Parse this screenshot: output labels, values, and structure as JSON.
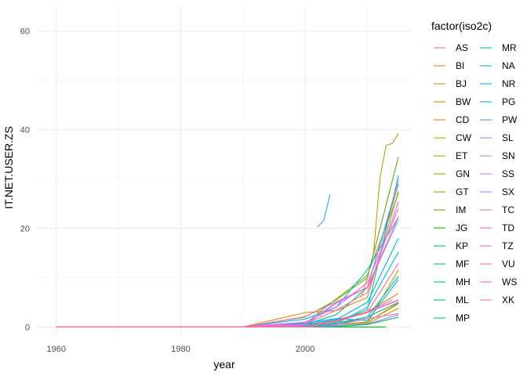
{
  "chart_data": {
    "type": "line",
    "xlabel": "year",
    "ylabel": "IT.NET.USER.ZS",
    "xlim": [
      1957,
      2017
    ],
    "ylim": [
      -2,
      65
    ],
    "x_ticks": [
      1960,
      1980,
      2000
    ],
    "y_ticks": [
      0,
      20,
      40,
      60
    ],
    "grid": true,
    "legend": {
      "title": "factor(iso2c)",
      "placement": "right"
    },
    "series": [
      {
        "name": "AS",
        "color": "#F8766D",
        "x": [
          1960,
          1990,
          2000,
          2005,
          2010,
          2014
        ],
        "y": [
          0,
          0,
          0.5,
          1.5,
          3.0,
          5.5
        ]
      },
      {
        "name": "BI",
        "color": "#F07F4F",
        "x": [
          1960,
          1990,
          2000,
          2005,
          2010,
          2015
        ],
        "y": [
          0,
          0,
          0.1,
          0.5,
          1.0,
          4.9
        ]
      },
      {
        "name": "BJ",
        "color": "#E7861B",
        "x": [
          1960,
          1990,
          2000,
          2005,
          2010,
          2015
        ],
        "y": [
          0,
          0,
          0.3,
          1.3,
          3.1,
          6.8
        ]
      },
      {
        "name": "BW",
        "color": "#DB8E00",
        "x": [
          1960,
          1990,
          2000,
          2005,
          2010,
          2015
        ],
        "y": [
          0,
          0,
          2.9,
          3.3,
          6.0,
          27.5
        ]
      },
      {
        "name": "CD",
        "color": "#CD9600",
        "x": [
          1960,
          1990,
          2000,
          2005,
          2010,
          2015
        ],
        "y": [
          0,
          0,
          0.0,
          0.2,
          0.7,
          3.8
        ]
      },
      {
        "name": "CW",
        "color": "#C49A00",
        "x": [
          2009,
          2010,
          2011,
          2012,
          2013,
          2014,
          2015
        ],
        "y": [
          6.0,
          10.0,
          15.0,
          30.0,
          36.8,
          37.2,
          39.2
        ]
      },
      {
        "name": "ET",
        "color": "#AEA200",
        "x": [
          1960,
          1990,
          2000,
          2005,
          2010,
          2015
        ],
        "y": [
          0,
          0,
          0.0,
          0.2,
          0.8,
          11.6
        ]
      },
      {
        "name": "GN",
        "color": "#96A900",
        "x": [
          1960,
          1990,
          2000,
          2005,
          2010,
          2015
        ],
        "y": [
          0,
          0,
          0.1,
          0.5,
          1.0,
          4.7
        ]
      },
      {
        "name": "GT",
        "color": "#7CAE00",
        "x": [
          1960,
          1990,
          2000,
          2005,
          2010,
          2015
        ],
        "y": [
          0,
          0,
          0.7,
          5.7,
          10.5,
          27.1
        ]
      },
      {
        "name": "IM",
        "color": "#5BB300",
        "x": [
          1960,
          1990,
          2000,
          2005,
          2010,
          2015
        ],
        "y": [
          0,
          0,
          2.0,
          5.5,
          10.0,
          34.5
        ]
      },
      {
        "name": "JG",
        "color": "#00B81F",
        "x": [
          1990,
          2000,
          2005,
          2010,
          2013
        ],
        "y": [
          0,
          0.0,
          0.0,
          0.0,
          0.0
        ]
      },
      {
        "name": "KP",
        "color": "#00BC59",
        "x": [
          1960,
          1990,
          2000,
          2005,
          2010,
          2015
        ],
        "y": [
          0,
          0,
          0.0,
          0.1,
          0.5,
          2.0
        ]
      },
      {
        "name": "MF",
        "color": "#00BE6C",
        "x": [
          1960,
          1990,
          2000,
          2005,
          2010,
          2015
        ],
        "y": [
          0,
          0,
          0.1,
          0.8,
          2.0,
          5.0
        ]
      },
      {
        "name": "MH",
        "color": "#00C08B",
        "x": [
          1960,
          1990,
          2000,
          2005,
          2010,
          2015
        ],
        "y": [
          0,
          0,
          0.5,
          2.5,
          8.0,
          29.0
        ]
      },
      {
        "name": "ML",
        "color": "#00C0A7",
        "x": [
          1960,
          1990,
          2000,
          2005,
          2010,
          2015
        ],
        "y": [
          0,
          0,
          0.1,
          0.5,
          2.0,
          10.3
        ]
      },
      {
        "name": "MP",
        "color": "#00BFC4",
        "x": [
          1960,
          1990,
          2000,
          2005,
          2010,
          2015
        ],
        "y": [
          0,
          0,
          0.3,
          1.0,
          3.5,
          30.7
        ]
      },
      {
        "name": "MR",
        "color": "#00BCD8",
        "x": [
          1960,
          1990,
          2000,
          2005,
          2010,
          2015
        ],
        "y": [
          0,
          0,
          0.2,
          0.7,
          4.0,
          15.2
        ]
      },
      {
        "name": "NA",
        "color": "#00B6EB",
        "x": [
          1960,
          1990,
          2000,
          2005,
          2010,
          2015
        ],
        "y": [
          0,
          0,
          1.6,
          4.0,
          11.6,
          22.3
        ]
      },
      {
        "name": "NR",
        "color": "#00B0F6",
        "x": [
          1960,
          1990,
          2000,
          2005,
          2010,
          2015
        ],
        "y": [
          0,
          0,
          0.5,
          1.5,
          5.0,
          18.0
        ]
      },
      {
        "name": "PG",
        "color": "#00A9FF",
        "x": [
          1960,
          1990,
          2000,
          2005,
          2010,
          2015
        ],
        "y": [
          0,
          0,
          0.8,
          1.7,
          1.3,
          9.6
        ]
      },
      {
        "name": "PW",
        "color": "#35A2FF",
        "x": [
          2002,
          2003,
          2004
        ],
        "y": [
          20.3,
          21.6,
          26.9
        ]
      },
      {
        "name": "SL",
        "color": "#7997FF",
        "x": [
          1960,
          1990,
          2000,
          2005,
          2010,
          2015
        ],
        "y": [
          0,
          0,
          0.1,
          0.2,
          0.6,
          2.5
        ]
      },
      {
        "name": "SN",
        "color": "#9590FF",
        "x": [
          1960,
          1990,
          2000,
          2005,
          2010,
          2015
        ],
        "y": [
          0,
          0,
          0.4,
          4.8,
          8.0,
          21.7
        ]
      },
      {
        "name": "SS",
        "color": "#C77CFF",
        "x": [
          2011,
          2012,
          2013,
          2014,
          2015
        ],
        "y": [
          3.8,
          4.0,
          4.5,
          5.0,
          5.5
        ]
      },
      {
        "name": "SX",
        "color": "#DC71FA",
        "x": [
          1960,
          1990,
          2000,
          2005,
          2010,
          2015
        ],
        "y": [
          0,
          0,
          0.5,
          5.0,
          8.0,
          29.8
        ]
      },
      {
        "name": "TC",
        "color": "#E76BF3",
        "x": [
          1960,
          1990,
          2000,
          2005,
          2010,
          2015
        ],
        "y": [
          0,
          0,
          1.0,
          4.0,
          9.0,
          24.0
        ]
      },
      {
        "name": "TD",
        "color": "#F365E6",
        "x": [
          1960,
          1990,
          2000,
          2005,
          2010,
          2015
        ],
        "y": [
          0,
          0,
          0.0,
          0.4,
          1.7,
          2.7
        ]
      },
      {
        "name": "TZ",
        "color": "#FC61D5",
        "x": [
          1960,
          1990,
          2000,
          2005,
          2010,
          2015
        ],
        "y": [
          0,
          0,
          0.1,
          1.1,
          2.9,
          5.4
        ]
      },
      {
        "name": "VU",
        "color": "#FF62BC",
        "x": [
          1960,
          1990,
          2000,
          2005,
          2010,
          2015
        ],
        "y": [
          0,
          0,
          2.1,
          5.1,
          8.0,
          22.4
        ]
      },
      {
        "name": "WS",
        "color": "#FF65AE",
        "x": [
          1960,
          1990,
          2000,
          2005,
          2010,
          2015
        ],
        "y": [
          0,
          0,
          0.6,
          3.4,
          7.0,
          25.4
        ]
      },
      {
        "name": "XK",
        "color": "#FF6C91",
        "x": [
          1960,
          1990,
          2000,
          2005,
          2010,
          2015
        ],
        "y": [
          0,
          0,
          0.1,
          1.2,
          3.0,
          12.9
        ]
      }
    ]
  }
}
